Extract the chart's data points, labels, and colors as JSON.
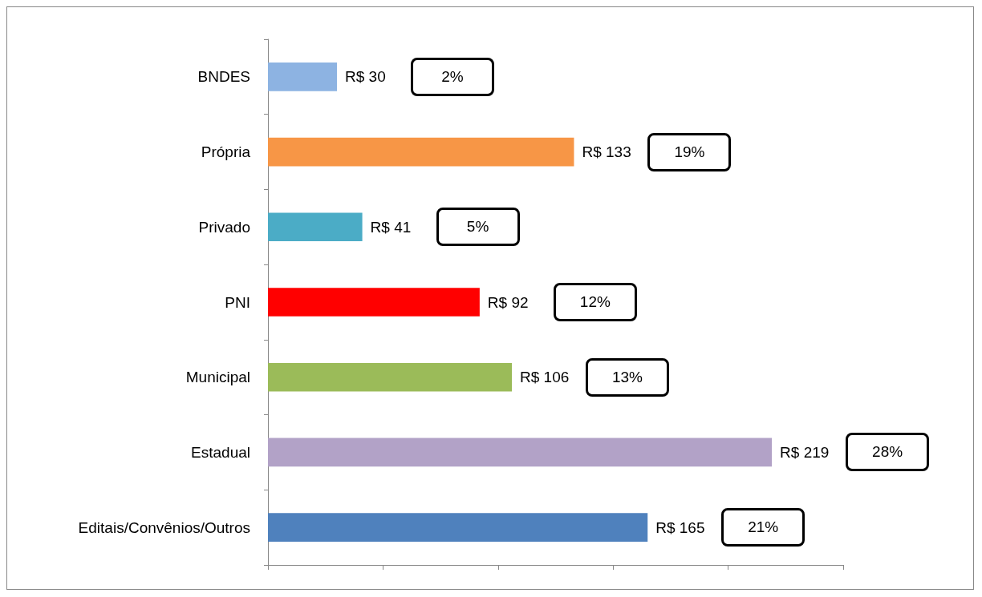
{
  "chart_data": {
    "type": "bar",
    "orientation": "horizontal",
    "categories": [
      "BNDES",
      "Própria",
      "Privado",
      "PNI",
      "Municipal",
      "Estadual",
      "Editais/Convênios/Outros"
    ],
    "values": [
      30,
      133,
      41,
      92,
      106,
      219,
      165
    ],
    "colors": [
      "#8db3e2",
      "#f79646",
      "#4bacc6",
      "#ff0000",
      "#9bbb59",
      "#b2a2c7",
      "#4f81bd"
    ],
    "value_labels": [
      "R$ 30",
      "R$ 133",
      "R$ 41",
      "R$ 92",
      "R$ 106",
      "R$ 219",
      "R$ 165"
    ],
    "annotations": [
      "2%",
      "19%",
      "5%",
      "12%",
      "13%",
      "28%",
      "21%"
    ],
    "xlim": [
      0,
      250
    ],
    "xticks": [
      {
        "value": 0,
        "label": null
      },
      {
        "value": 50,
        "label": null
      },
      {
        "value": 100,
        "label": null
      },
      {
        "value": 150,
        "label": null
      },
      {
        "value": 200,
        "label": null
      },
      {
        "value": 250,
        "label": null
      }
    ],
    "tick_labels": "y",
    "grid": false
  }
}
